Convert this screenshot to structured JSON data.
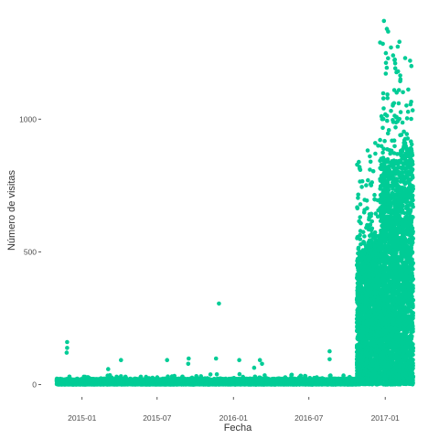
{
  "chart_data": {
    "type": "scatter",
    "xlabel": "Fecha",
    "ylabel": "Número de visitas",
    "x_ticks": [
      {
        "value": "2015-01-01",
        "label": "2015-01"
      },
      {
        "value": "2015-07-01",
        "label": "2015-07"
      },
      {
        "value": "2016-01-01",
        "label": "2016-01"
      },
      {
        "value": "2016-07-01",
        "label": "2016-07"
      },
      {
        "value": "2017-01-01",
        "label": "2017-01"
      }
    ],
    "y_ticks": [
      {
        "value": 0,
        "label": "0"
      },
      {
        "value": 500,
        "label": "500"
      },
      {
        "value": 1000,
        "label": "1000"
      }
    ],
    "xlim": [
      "2014-10-01",
      "2017-04-01"
    ],
    "ylim": [
      -40,
      1380
    ],
    "grid": false,
    "point_color": "#00CC96",
    "outliers": [
      {
        "x": "2014-11-26",
        "y": 160
      },
      {
        "x": "2014-11-26",
        "y": 138
      },
      {
        "x": "2014-11-25",
        "y": 120
      },
      {
        "x": "2015-04-05",
        "y": 92
      },
      {
        "x": "2015-03-05",
        "y": 58
      },
      {
        "x": "2015-07-25",
        "y": 92
      },
      {
        "x": "2015-09-15",
        "y": 98
      },
      {
        "x": "2015-09-14",
        "y": 78
      },
      {
        "x": "2015-11-27",
        "y": 305
      },
      {
        "x": "2015-11-20",
        "y": 98
      },
      {
        "x": "2016-01-15",
        "y": 92
      },
      {
        "x": "2016-02-20",
        "y": 63
      },
      {
        "x": "2016-03-05",
        "y": 92
      },
      {
        "x": "2016-03-10",
        "y": 78
      },
      {
        "x": "2016-08-20",
        "y": 125
      },
      {
        "x": "2016-08-20",
        "y": 95
      }
    ],
    "segments": [
      {
        "start": "2014-11-01",
        "end": "2016-10-25",
        "base_max": 22,
        "spread": 18
      },
      {
        "start": "2016-10-25",
        "end": "2016-11-20",
        "base_max": 500,
        "spread": 380
      },
      {
        "start": "2016-11-20",
        "end": "2016-12-20",
        "base_max": 550,
        "spread": 400
      },
      {
        "start": "2016-12-20",
        "end": "2017-02-05",
        "base_max": 850,
        "spread": 500
      },
      {
        "start": "2017-02-05",
        "end": "2017-03-10",
        "base_max": 900,
        "spread": 320
      }
    ],
    "peaks": [
      {
        "x": "2016-12-29",
        "y": 1370
      },
      {
        "x": "2017-01-05",
        "y": 1340
      },
      {
        "x": "2017-01-08",
        "y": 1330
      },
      {
        "x": "2017-01-15",
        "y": 1270
      },
      {
        "x": "2017-01-20",
        "y": 1240
      },
      {
        "x": "2017-01-25",
        "y": 1210
      },
      {
        "x": "2017-02-01",
        "y": 1180
      },
      {
        "x": "2017-02-18",
        "y": 1230
      },
      {
        "x": "2017-03-02",
        "y": 1220
      },
      {
        "x": "2017-03-05",
        "y": 1200
      },
      {
        "x": "2016-12-08",
        "y": 910
      },
      {
        "x": "2016-11-25",
        "y": 860
      },
      {
        "x": "2016-12-15",
        "y": 900
      }
    ]
  }
}
